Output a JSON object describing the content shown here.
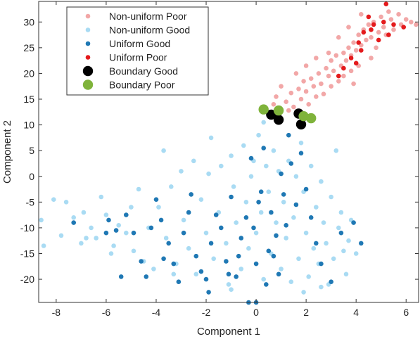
{
  "chart_data": {
    "type": "scatter",
    "xlabel": "Component 1",
    "ylabel": "Component 2",
    "xlim": [
      -8.7,
      6.5
    ],
    "ylim": [
      -24.5,
      34
    ],
    "xticks": [
      -8,
      -6,
      -4,
      -2,
      0,
      2,
      4,
      6
    ],
    "yticks": [
      -20,
      -15,
      -10,
      -5,
      0,
      5,
      10,
      15,
      20,
      25,
      30
    ],
    "grid": false,
    "legend_position": "top-left",
    "series": [
      {
        "name": "Non-uniform Poor",
        "color": "#f2a7a7",
        "size": "small",
        "points": [
          [
            0.8,
            15.5
          ],
          [
            1.0,
            17.5
          ],
          [
            1.2,
            14.5
          ],
          [
            1.4,
            16.2
          ],
          [
            1.5,
            13.5
          ],
          [
            1.7,
            17.0
          ],
          [
            1.8,
            15.0
          ],
          [
            1.9,
            18.5
          ],
          [
            2.0,
            16.5
          ],
          [
            2.1,
            14.0
          ],
          [
            2.2,
            19.0
          ],
          [
            2.3,
            17.5
          ],
          [
            2.4,
            15.5
          ],
          [
            2.5,
            20.0
          ],
          [
            2.6,
            18.0
          ],
          [
            2.7,
            16.0
          ],
          [
            2.8,
            21.0
          ],
          [
            2.9,
            19.5
          ],
          [
            3.0,
            17.5
          ],
          [
            3.0,
            22.5
          ],
          [
            3.1,
            20.5
          ],
          [
            3.2,
            23.5
          ],
          [
            3.3,
            18.5
          ],
          [
            3.4,
            21.5
          ],
          [
            3.5,
            24.0
          ],
          [
            3.5,
            19.5
          ],
          [
            3.6,
            22.5
          ],
          [
            3.7,
            25.0
          ],
          [
            3.8,
            20.5
          ],
          [
            3.8,
            23.5
          ],
          [
            3.9,
            26.0
          ],
          [
            4.0,
            24.5
          ],
          [
            4.1,
            27.5
          ],
          [
            4.1,
            21.5
          ],
          [
            4.2,
            25.5
          ],
          [
            4.3,
            28.5
          ],
          [
            4.4,
            26.5
          ],
          [
            4.5,
            29.5
          ],
          [
            4.6,
            27.0
          ],
          [
            4.7,
            30.0
          ],
          [
            4.8,
            25.0
          ],
          [
            4.9,
            28.0
          ],
          [
            5.0,
            31.0
          ],
          [
            5.1,
            29.0
          ],
          [
            5.2,
            27.5
          ],
          [
            5.3,
            32.0
          ],
          [
            5.4,
            30.5
          ],
          [
            5.5,
            28.5
          ],
          [
            5.7,
            31.5
          ],
          [
            5.8,
            29.5
          ],
          [
            6.0,
            30.5
          ],
          [
            6.2,
            30.0
          ],
          [
            6.4,
            29.5
          ],
          [
            3.7,
            29.0
          ],
          [
            4.2,
            31.5
          ],
          [
            2.4,
            23.0
          ],
          [
            1.6,
            20.0
          ],
          [
            0.7,
            14.0
          ],
          [
            1.3,
            12.8
          ],
          [
            2.9,
            24.0
          ],
          [
            3.3,
            27.0
          ],
          [
            2.0,
            21.5
          ],
          [
            4.6,
            23.0
          ],
          [
            3.9,
            18.0
          ]
        ]
      },
      {
        "name": "Non-uniform Good",
        "color": "#a9dbf3",
        "size": "small",
        "points": [
          [
            -8.6,
            -8.5
          ],
          [
            -8.5,
            -13.5
          ],
          [
            -8.1,
            -4.5
          ],
          [
            -7.8,
            -11.5
          ],
          [
            -7.6,
            -5.0
          ],
          [
            -7.3,
            -8.0
          ],
          [
            -7.0,
            -13.0
          ],
          [
            -6.9,
            -7.0
          ],
          [
            -6.6,
            -10.0
          ],
          [
            -6.4,
            -12.0
          ],
          [
            -6.2,
            -4.0
          ],
          [
            -6.0,
            -7.5
          ],
          [
            -5.7,
            -13.5
          ],
          [
            -5.5,
            -9.5
          ],
          [
            -5.2,
            -11.0
          ],
          [
            -5.0,
            -6.0
          ],
          [
            -4.9,
            -14.5
          ],
          [
            -4.7,
            -2.5
          ],
          [
            -4.5,
            -16.5
          ],
          [
            -4.3,
            -10.0
          ],
          [
            -4.1,
            -18.0
          ],
          [
            -3.9,
            -6.0
          ],
          [
            -3.7,
            5.0
          ],
          [
            -3.6,
            -12.0
          ],
          [
            -3.4,
            -2.0
          ],
          [
            -3.2,
            -17.0
          ],
          [
            -3.0,
            1.0
          ],
          [
            -2.9,
            -8.5
          ],
          [
            -2.7,
            -14.0
          ],
          [
            -2.5,
            3.0
          ],
          [
            -2.4,
            -19.0
          ],
          [
            -2.2,
            -4.5
          ],
          [
            -2.0,
            -11.0
          ],
          [
            -1.9,
            0.5
          ],
          [
            -1.8,
            7.5
          ],
          [
            -1.7,
            -16.0
          ],
          [
            -1.5,
            -7.0
          ],
          [
            -1.4,
            2.0
          ],
          [
            -1.2,
            -13.0
          ],
          [
            -1.1,
            -21.0
          ],
          [
            -1.0,
            4.0
          ],
          [
            -0.9,
            -2.0
          ],
          [
            -0.8,
            -9.0
          ],
          [
            -0.6,
            -18.0
          ],
          [
            -0.5,
            6.0
          ],
          [
            -0.4,
            -5.0
          ],
          [
            -0.3,
            -14.0
          ],
          [
            -0.2,
            0.0
          ],
          [
            -0.1,
            3.0
          ],
          [
            0.0,
            -11.0
          ],
          [
            0.1,
            8.0
          ],
          [
            0.2,
            -7.0
          ],
          [
            0.3,
            -20.0
          ],
          [
            0.4,
            2.0
          ],
          [
            0.5,
            -3.0
          ],
          [
            0.6,
            -15.0
          ],
          [
            0.7,
            5.0
          ],
          [
            0.8,
            -9.0
          ],
          [
            0.9,
            1.0
          ],
          [
            1.0,
            -18.0
          ],
          [
            1.1,
            -5.0
          ],
          [
            1.2,
            -12.0
          ],
          [
            1.3,
            3.0
          ],
          [
            1.4,
            -20.5
          ],
          [
            1.5,
            -8.0
          ],
          [
            1.6,
            0.0
          ],
          [
            1.7,
            -16.0
          ],
          [
            1.8,
            6.5
          ],
          [
            1.9,
            -3.0
          ],
          [
            2.0,
            -11.0
          ],
          [
            2.1,
            -19.5
          ],
          [
            2.2,
            2.0
          ],
          [
            2.3,
            -14.0
          ],
          [
            2.4,
            -6.0
          ],
          [
            2.5,
            -17.0
          ],
          [
            2.6,
            -1.0
          ],
          [
            2.7,
            -9.0
          ],
          [
            2.8,
            -13.0
          ],
          [
            2.9,
            -21.0
          ],
          [
            3.0,
            -4.0
          ],
          [
            3.1,
            -16.0
          ],
          [
            3.2,
            5.0
          ],
          [
            3.3,
            -10.0
          ],
          [
            3.4,
            -7.0
          ],
          [
            3.5,
            -14.5
          ],
          [
            3.6,
            -19.0
          ],
          [
            3.7,
            -12.5
          ],
          [
            3.8,
            -8.5
          ],
          [
            4.0,
            -15.0
          ],
          [
            -3.3,
            -19.0
          ],
          [
            -6.8,
            -12.0
          ],
          [
            -5.8,
            -15.0
          ],
          [
            0.3,
            10.5
          ],
          [
            -1.0,
            -22.0
          ],
          [
            2.6,
            -21.5
          ],
          [
            1.9,
            -22.5
          ]
        ]
      },
      {
        "name": "Uniform Good",
        "color": "#1f78b4",
        "size": "small",
        "points": [
          [
            -7.3,
            -9.0
          ],
          [
            -6.0,
            -11.0
          ],
          [
            -5.9,
            -8.5
          ],
          [
            -5.6,
            -10.5
          ],
          [
            -5.4,
            -19.5
          ],
          [
            -5.2,
            -7.5
          ],
          [
            -4.9,
            -11.0
          ],
          [
            -4.6,
            -16.5
          ],
          [
            -4.4,
            -19.5
          ],
          [
            -4.2,
            -10.0
          ],
          [
            -4.0,
            -4.5
          ],
          [
            -3.8,
            -8.5
          ],
          [
            -3.7,
            -16.0
          ],
          [
            -3.5,
            -13.0
          ],
          [
            -3.3,
            -17.0
          ],
          [
            -3.1,
            -20.5
          ],
          [
            -2.9,
            -11.0
          ],
          [
            -2.7,
            -7.0
          ],
          [
            -2.6,
            -3.5
          ],
          [
            -2.4,
            -15.5
          ],
          [
            -2.2,
            -18.5
          ],
          [
            -1.9,
            -22.5
          ],
          [
            -1.8,
            -13.0
          ],
          [
            -1.6,
            -7.5
          ],
          [
            -1.4,
            -10.0
          ],
          [
            -1.2,
            -16.5
          ],
          [
            -1.0,
            -4.0
          ],
          [
            -0.8,
            -19.5
          ],
          [
            -0.6,
            -12.0
          ],
          [
            -0.4,
            -8.0
          ],
          [
            -0.3,
            -24.5
          ],
          [
            -0.2,
            3.5
          ],
          [
            0.0,
            -17.0
          ],
          [
            0.1,
            -5.0
          ],
          [
            0.3,
            5.5
          ],
          [
            0.4,
            -21.0
          ],
          [
            0.5,
            -14.5
          ],
          [
            0.6,
            -7.0
          ],
          [
            0.8,
            -11.5
          ],
          [
            0.9,
            -19.0
          ],
          [
            1.0,
            0.5
          ],
          [
            1.1,
            -3.5
          ],
          [
            1.2,
            -9.5
          ],
          [
            1.4,
            2.5
          ],
          [
            1.6,
            -5.5
          ],
          [
            1.8,
            4.5
          ],
          [
            2.0,
            -2.5
          ],
          [
            2.2,
            -8.0
          ],
          [
            2.4,
            -13.0
          ],
          [
            2.6,
            -17.0
          ],
          [
            3.0,
            -20.5
          ],
          [
            3.4,
            -11.0
          ],
          [
            3.9,
            -9.0
          ],
          [
            4.2,
            -13.0
          ],
          [
            -0.1,
            -10.0
          ],
          [
            0.7,
            -15.5
          ],
          [
            -1.1,
            -19.0
          ],
          [
            0.2,
            -3.0
          ],
          [
            1.3,
            8.0
          ],
          [
            -2.0,
            -20.0
          ],
          [
            -0.7,
            -15.5
          ],
          [
            0.0,
            -24.5
          ]
        ]
      },
      {
        "name": "Uniform Poor",
        "color": "#e41a1c",
        "size": "small",
        "points": [
          [
            3.5,
            21.0
          ],
          [
            3.8,
            23.0
          ],
          [
            4.0,
            22.0
          ],
          [
            4.1,
            26.0
          ],
          [
            4.2,
            24.5
          ],
          [
            4.3,
            28.0
          ],
          [
            4.5,
            31.0
          ],
          [
            4.7,
            29.5
          ],
          [
            4.9,
            26.5
          ],
          [
            5.1,
            30.0
          ],
          [
            5.2,
            33.5
          ],
          [
            5.3,
            27.5
          ],
          [
            5.5,
            29.5
          ],
          [
            5.9,
            29.0
          ],
          [
            3.3,
            19.5
          ],
          [
            4.6,
            28.5
          ]
        ]
      },
      {
        "name": "Boundary Good",
        "color": "#000000",
        "size": "large",
        "points": [
          [
            0.6,
            12.0
          ],
          [
            0.9,
            11.0
          ],
          [
            1.7,
            12.2
          ],
          [
            1.8,
            10.1
          ]
        ]
      },
      {
        "name": "Boundary Poor",
        "color": "#7fb33b",
        "size": "large",
        "points": [
          [
            0.3,
            13.0
          ],
          [
            0.9,
            12.8
          ],
          [
            1.9,
            11.7
          ],
          [
            2.2,
            11.3
          ]
        ]
      }
    ]
  }
}
